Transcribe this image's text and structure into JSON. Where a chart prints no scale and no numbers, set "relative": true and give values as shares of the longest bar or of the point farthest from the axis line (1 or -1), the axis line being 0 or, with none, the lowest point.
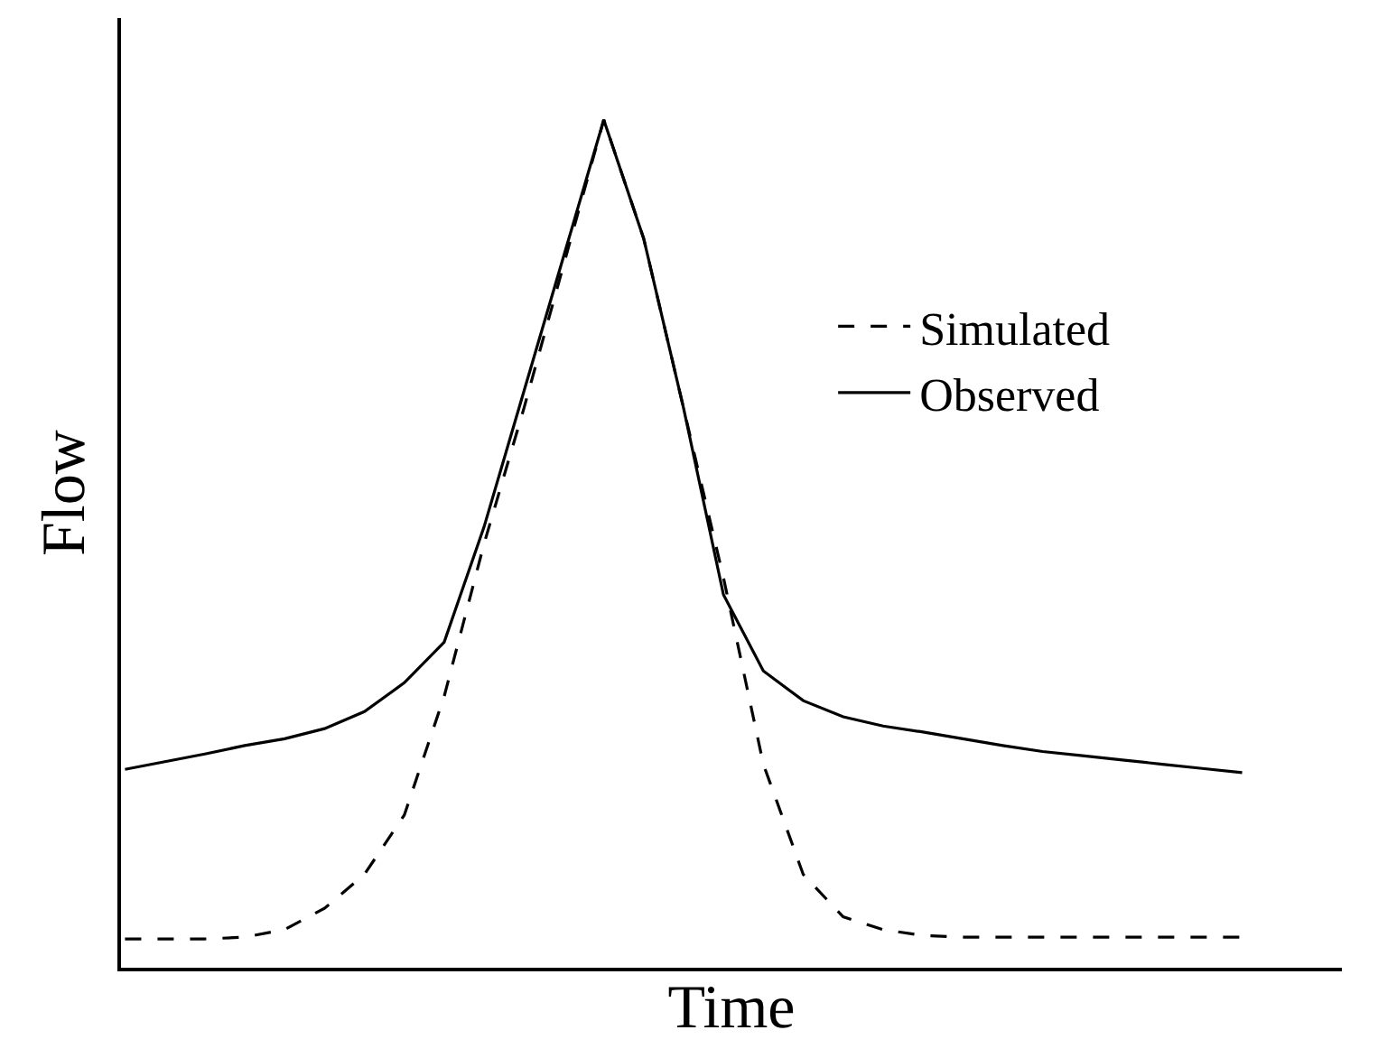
{
  "chart_data": {
    "type": "line",
    "relative": true,
    "xlabel": "Time",
    "ylabel": "Flow",
    "legend": "right",
    "marker": "none",
    "categories": [
      null,
      null,
      null,
      null,
      null,
      null,
      null,
      null,
      null,
      null,
      null,
      null,
      null,
      null,
      null,
      null,
      null,
      null,
      null,
      null,
      null,
      null,
      null,
      null,
      null,
      null,
      null,
      null,
      null
    ],
    "series": [
      {
        "name": "Simulated",
        "color": "#000000",
        "line_style": "dashed",
        "values": [
          0.034,
          0.034,
          0.034,
          0.036,
          0.045,
          0.07,
          0.11,
          0.18,
          0.32,
          0.5,
          0.66,
          0.83,
          1.0,
          0.86,
          0.66,
          0.46,
          0.24,
          0.11,
          0.06,
          0.045,
          0.038,
          0.036,
          0.036,
          0.036,
          0.036,
          0.036,
          0.036,
          0.036,
          0.036
        ]
      },
      {
        "name": "Observed",
        "color": "#000000",
        "line_style": "solid",
        "values": [
          0.234,
          0.243,
          0.252,
          0.262,
          0.27,
          0.282,
          0.302,
          0.336,
          0.384,
          0.52,
          0.68,
          0.84,
          1.0,
          0.86,
          0.66,
          0.44,
          0.35,
          0.315,
          0.296,
          0.285,
          0.278,
          0.27,
          0.262,
          0.255,
          0.25,
          0.245,
          0.24,
          0.235,
          0.23
        ]
      }
    ]
  }
}
